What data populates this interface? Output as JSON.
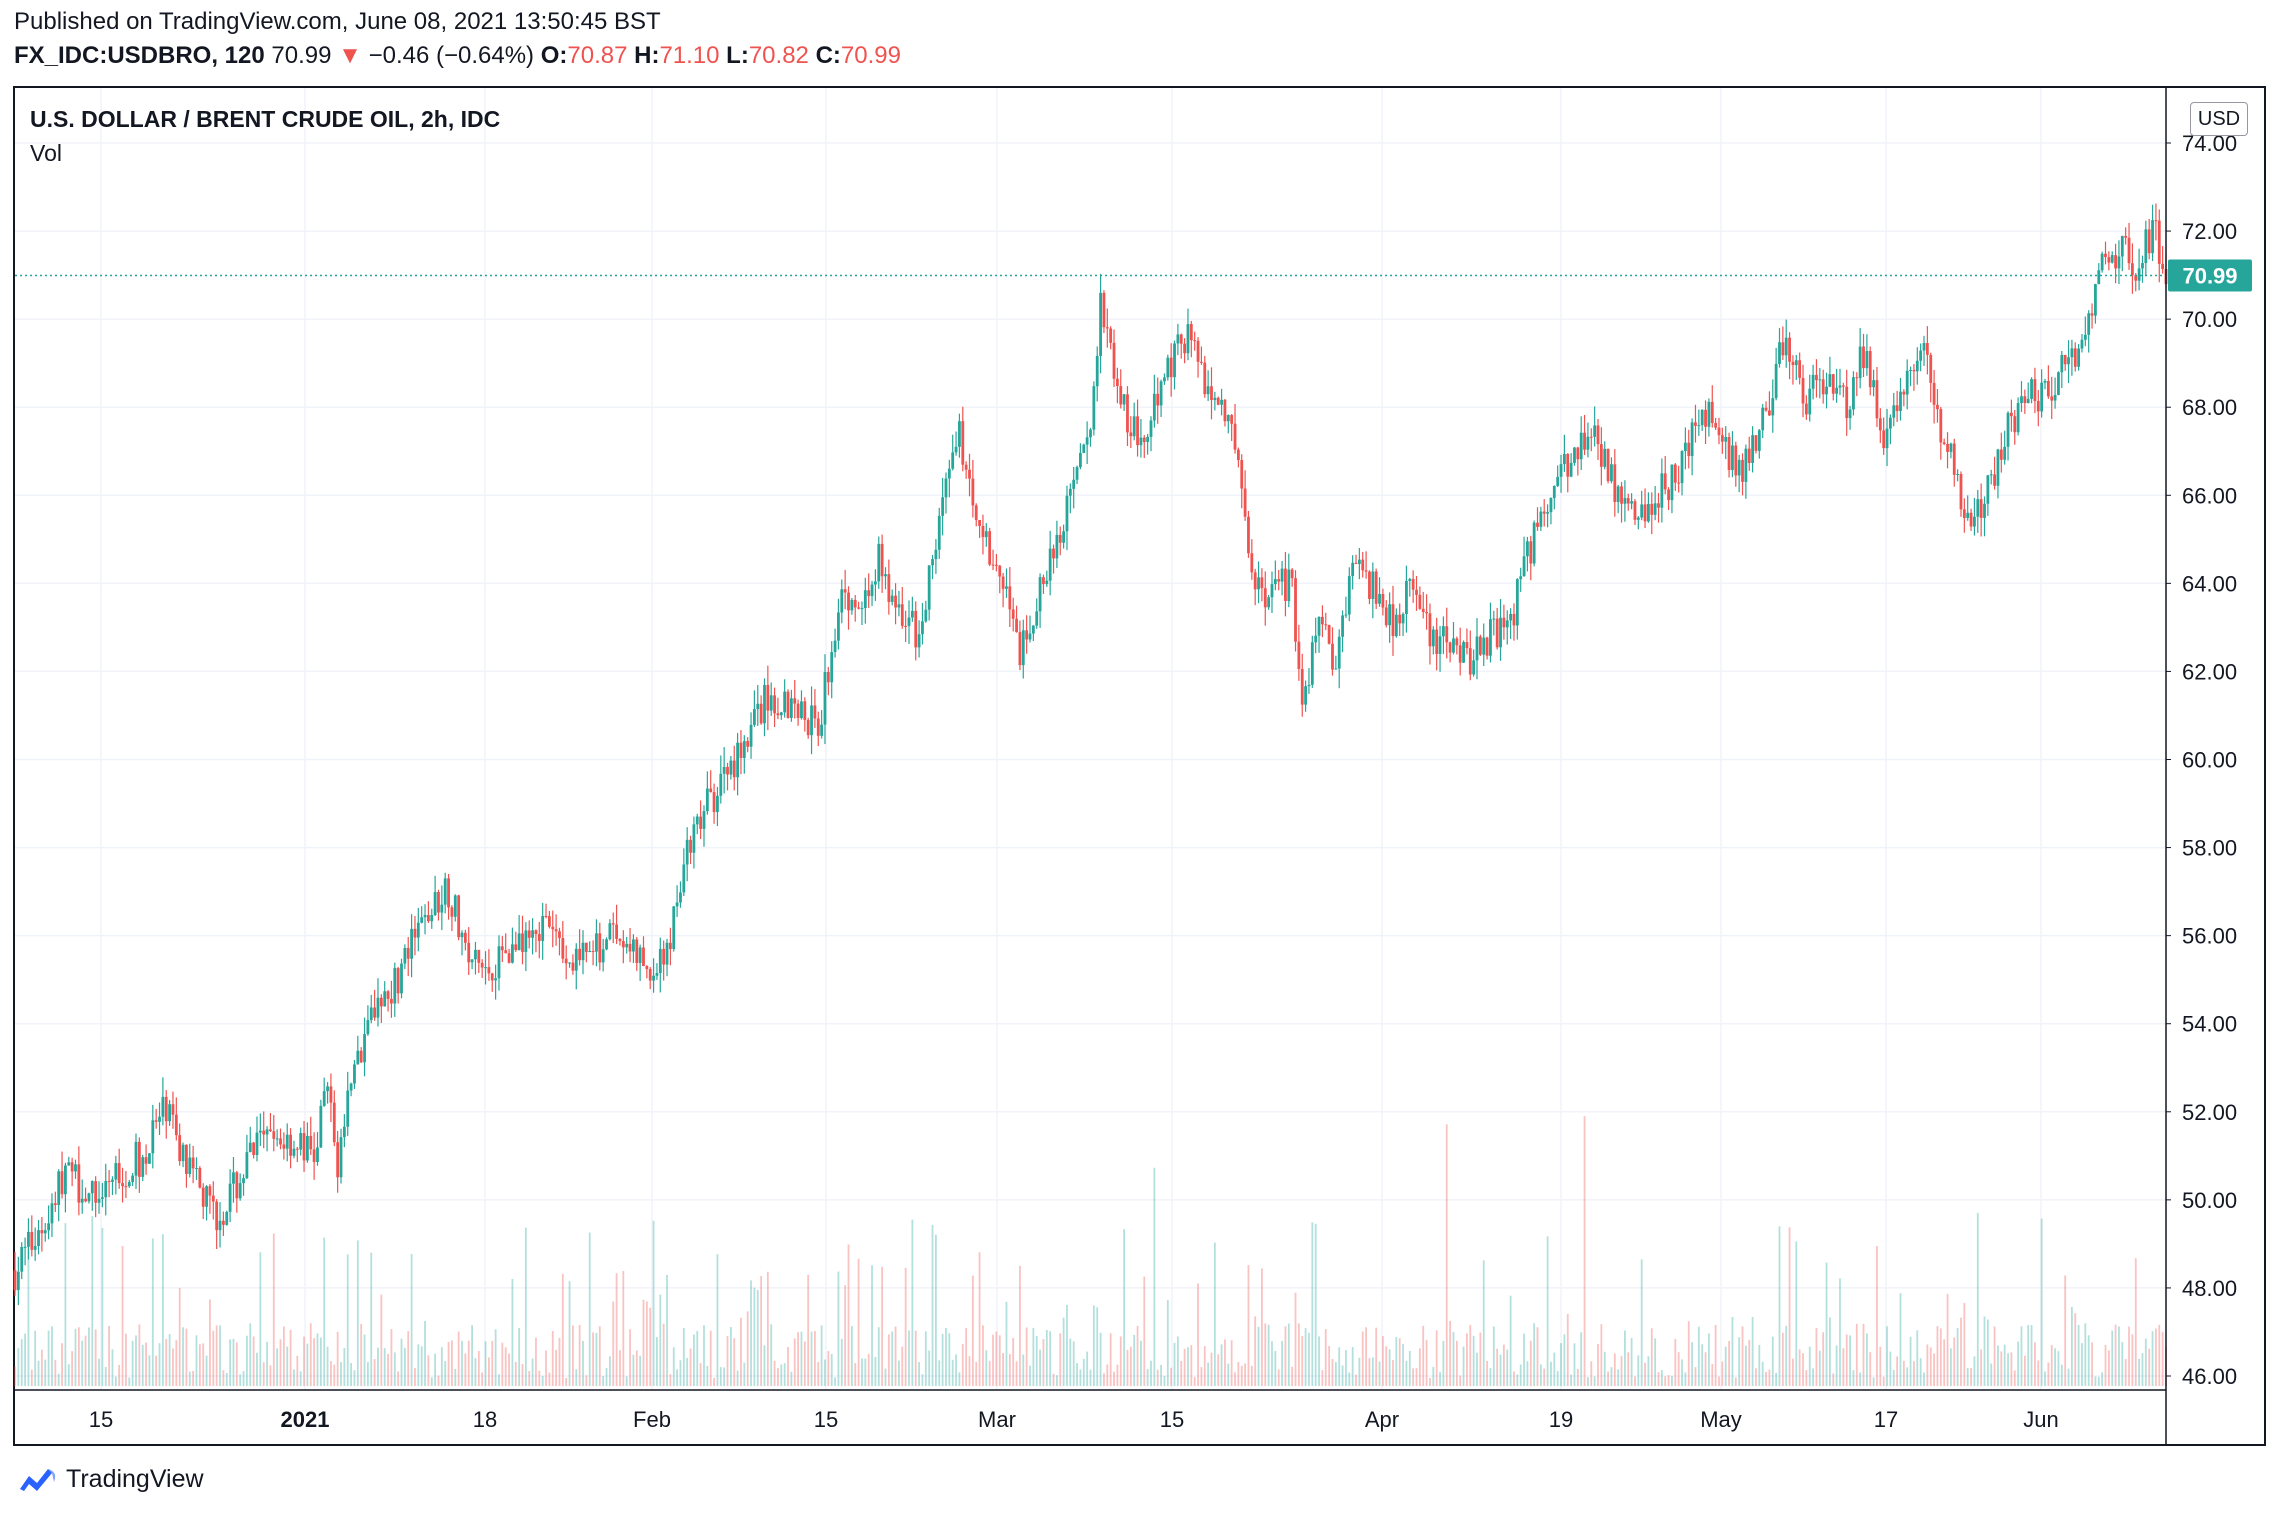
{
  "header": {
    "published": "Published on TradingView.com, June 08, 2021 13:50:45 BST",
    "symbol": "FX_IDC:USDBRO, 120",
    "last": "70.99",
    "change": "−0.46 (−0.64%)",
    "o_label": "O:",
    "o_value": "70.87",
    "h_label": "H:",
    "h_value": "71.10",
    "l_label": "L:",
    "l_value": "70.82",
    "c_label": "C:",
    "c_value": "70.99",
    "down_arrow": "▼"
  },
  "legend": {
    "title": "U.S. DOLLAR / BRENT CRUDE OIL, 2h, IDC",
    "vol": "Vol"
  },
  "currency_badge": "USD",
  "brand": {
    "name": "TradingView",
    "icon": "tradingview-cloud-icon"
  },
  "colors": {
    "up": "#26a69a",
    "down": "#ef5350",
    "last_price": "#26a69a",
    "grid": "#f0f3fa"
  },
  "chart_data": {
    "type": "candlestick",
    "title": "U.S. DOLLAR / BRENT CRUDE OIL, 2h, IDC",
    "ylim": [
      45.8,
      74.5
    ],
    "y_ticks": [
      "46.00",
      "48.00",
      "50.00",
      "52.00",
      "54.00",
      "56.00",
      "58.00",
      "60.00",
      "62.00",
      "64.00",
      "66.00",
      "68.00",
      "70.00",
      "72.00",
      "74.00"
    ],
    "x_ticks": [
      {
        "label": "15",
        "bold": false
      },
      {
        "label": "2021",
        "bold": true
      },
      {
        "label": "18",
        "bold": false
      },
      {
        "label": "Feb",
        "bold": false
      },
      {
        "label": "15",
        "bold": false
      },
      {
        "label": "Mar",
        "bold": false
      },
      {
        "label": "15",
        "bold": false
      },
      {
        "label": "Apr",
        "bold": false
      },
      {
        "label": "19",
        "bold": false
      },
      {
        "label": "May",
        "bold": false
      },
      {
        "label": "17",
        "bold": false
      },
      {
        "label": "Jun",
        "bold": false
      }
    ],
    "last_price": 70.99,
    "last_price_label": "70.99",
    "close_path": [
      [
        0,
        48.4
      ],
      [
        3,
        49.5
      ],
      [
        5,
        50.7
      ],
      [
        8,
        50.0
      ],
      [
        10,
        50.6
      ],
      [
        13,
        51.0
      ],
      [
        15,
        52.2
      ],
      [
        17,
        50.7
      ],
      [
        20,
        49.6
      ],
      [
        22,
        50.3
      ],
      [
        24,
        51.2
      ],
      [
        27,
        51.4
      ],
      [
        30,
        51.0
      ],
      [
        31,
        52.7
      ],
      [
        32,
        50.8
      ],
      [
        34,
        53.2
      ],
      [
        36,
        54.6
      ],
      [
        38,
        55.0
      ],
      [
        40,
        56.0
      ],
      [
        43,
        57.2
      ],
      [
        45,
        55.5
      ],
      [
        47,
        55.2
      ],
      [
        49,
        55.8
      ],
      [
        52,
        56.3
      ],
      [
        55,
        55.7
      ],
      [
        57,
        55.4
      ],
      [
        59,
        56.0
      ],
      [
        61,
        55.8
      ],
      [
        63,
        55.2
      ],
      [
        65,
        55.6
      ],
      [
        66,
        57.3
      ],
      [
        69,
        59.0
      ],
      [
        72,
        60.2
      ],
      [
        75,
        61.5
      ],
      [
        78,
        61.2
      ],
      [
        80,
        60.7
      ],
      [
        82,
        63.7
      ],
      [
        84,
        63.4
      ],
      [
        86,
        64.5
      ],
      [
        88,
        63.2
      ],
      [
        90,
        62.8
      ],
      [
        92,
        65.5
      ],
      [
        94,
        67.3
      ],
      [
        96,
        65.5
      ],
      [
        98,
        64.2
      ],
      [
        100,
        62.5
      ],
      [
        103,
        64.4
      ],
      [
        105,
        65.8
      ],
      [
        107,
        67.5
      ],
      [
        108,
        70.5
      ],
      [
        110,
        68.3
      ],
      [
        112,
        67.0
      ],
      [
        114,
        68.6
      ],
      [
        116,
        69.6
      ],
      [
        117,
        69.8
      ],
      [
        119,
        68.2
      ],
      [
        121,
        67.9
      ],
      [
        123,
        64.1
      ],
      [
        125,
        63.6
      ],
      [
        127,
        64.2
      ],
      [
        128,
        61.0
      ],
      [
        130,
        63.5
      ],
      [
        131,
        61.8
      ],
      [
        133,
        64.5
      ],
      [
        135,
        64.0
      ],
      [
        137,
        63.2
      ],
      [
        139,
        64.0
      ],
      [
        141,
        62.5
      ],
      [
        143,
        62.9
      ],
      [
        145,
        62.2
      ],
      [
        147,
        62.9
      ],
      [
        149,
        63.3
      ],
      [
        152,
        65.8
      ],
      [
        155,
        66.8
      ],
      [
        157,
        67.7
      ],
      [
        159,
        66.2
      ],
      [
        161,
        65.5
      ],
      [
        163,
        65.8
      ],
      [
        166,
        66.7
      ],
      [
        168,
        68.0
      ],
      [
        170,
        67.1
      ],
      [
        172,
        66.5
      ],
      [
        174,
        67.8
      ],
      [
        176,
        69.5
      ],
      [
        178,
        68.2
      ],
      [
        180,
        68.7
      ],
      [
        182,
        68.0
      ],
      [
        184,
        69.2
      ],
      [
        186,
        67.0
      ],
      [
        188,
        68.3
      ],
      [
        190,
        69.9
      ],
      [
        191,
        68.0
      ],
      [
        193,
        66.5
      ],
      [
        194,
        65.5
      ],
      [
        196,
        65.8
      ],
      [
        198,
        67.5
      ],
      [
        200,
        68.3
      ],
      [
        202,
        68.2
      ],
      [
        204,
        69.0
      ],
      [
        206,
        69.3
      ],
      [
        207,
        70.9
      ],
      [
        209,
        71.6
      ],
      [
        211,
        71.3
      ],
      [
        213,
        71.9
      ],
      [
        214,
        71.0
      ]
    ],
    "volume_ylim": [
      0,
      100
    ],
    "volume_note": "per-bar volume values are not printed on the chart"
  }
}
